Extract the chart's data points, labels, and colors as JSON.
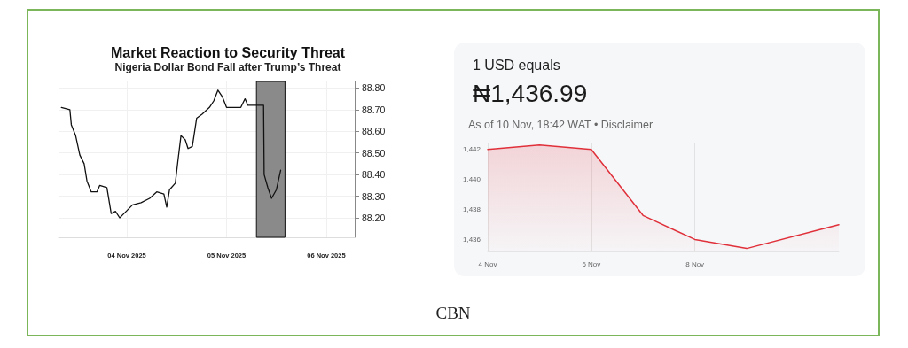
{
  "chart_data": [
    {
      "type": "line",
      "title": "Market Reaction to Security Threat",
      "subtitle": "Nigeria Dollar Bond Fall after Trump’s Threat",
      "annotations": [
        "CBN"
      ],
      "x": [
        "2025-11-03T08:14",
        "2025-11-03T10:17",
        "2025-11-03T10:38",
        "2025-11-03T11:40",
        "2025-11-03T12:41",
        "2025-11-03T13:43",
        "2025-11-03T14:24",
        "2025-11-03T15:26",
        "2025-11-03T16:48",
        "2025-11-03T17:29",
        "2025-11-03T19:12",
        "2025-11-03T20:14",
        "2025-11-03T21:16",
        "2025-11-03T22:17",
        "2025-11-03T23:19",
        "2025-11-04T01:22",
        "2025-11-04T03:26",
        "2025-11-04T05:29",
        "2025-11-04T07:12",
        "2025-11-04T08:55",
        "2025-11-04T09:36",
        "2025-11-04T10:17",
        "2025-11-04T11:40",
        "2025-11-04T12:20",
        "2025-11-04T13:02",
        "2025-11-04T14:04",
        "2025-11-04T14:44",
        "2025-11-04T15:46",
        "2025-11-04T16:48",
        "2025-11-04T18:10",
        "2025-11-04T19:53",
        "2025-11-04T20:55",
        "2025-11-04T21:56",
        "2025-11-04T22:58",
        "2025-11-05T00:00",
        "2025-11-05T01:43",
        "2025-11-05T03:26",
        "2025-11-05T04:27",
        "2025-11-05T05:08",
        "2025-11-05T07:32",
        "2025-11-05T08:55",
        "2025-11-05T09:03",
        "2025-11-05T09:56",
        "2025-11-05T10:50",
        "2025-11-05T12:00",
        "2025-11-05T13:02"
      ],
      "series": [
        {
          "color": "#111111",
          "values": [
            88.71,
            88.7,
            88.63,
            88.58,
            88.49,
            88.45,
            88.37,
            88.32,
            88.32,
            88.35,
            88.34,
            88.22,
            88.23,
            88.2,
            88.22,
            88.26,
            88.27,
            88.29,
            88.32,
            88.31,
            88.25,
            88.33,
            88.36,
            88.47,
            88.58,
            88.56,
            88.52,
            88.53,
            88.66,
            88.68,
            88.71,
            88.74,
            88.79,
            88.76,
            88.71,
            88.71,
            88.71,
            88.75,
            88.72,
            88.72,
            88.72,
            88.4,
            88.34,
            88.29,
            88.33,
            88.42
          ]
        }
      ],
      "xlim": [
        "2025-11-03T07:33",
        "2025-11-06T06:51"
      ],
      "xticks": [
        {
          "value": "2025-11-04",
          "label": "04 Nov 2025"
        },
        {
          "value": "2025-11-05",
          "label": "05 Nov 2025"
        },
        {
          "value": "2025-11-06",
          "label": "06 Nov 2025"
        }
      ],
      "ylim": [
        88.11,
        88.83
      ],
      "yticks": [
        {
          "value": 88.2,
          "label": "88.20"
        },
        {
          "value": 88.3,
          "label": "88.30"
        },
        {
          "value": 88.4,
          "label": "88.40"
        },
        {
          "value": 88.5,
          "label": "88.50"
        },
        {
          "value": 88.6,
          "label": "88.60"
        },
        {
          "value": 88.7,
          "label": "88.70"
        },
        {
          "value": 88.8,
          "label": "88.80"
        }
      ],
      "bands": [
        {
          "axis": "x",
          "from": "2025-11-05T07:12",
          "to": "2025-11-05T14:04",
          "color": "#8a8a8a"
        }
      ],
      "grid": true,
      "marker": "none",
      "line_style": "solid"
    },
    {
      "type": "area",
      "title": "1 USD equals",
      "subtitle": "₦1,436.99",
      "annotations": [
        "As of 10 Nov, 18:42 WAT • Disclaimer"
      ],
      "x": [
        "--11-04",
        "--11-05",
        "--11-06",
        "--11-07",
        "--11-08",
        "--11-09",
        "--11-10T18:42"
      ],
      "series": [
        {
          "color": "#e0313b",
          "values": [
            1442.0,
            1442.3,
            1442.0,
            1437.6,
            1436.0,
            1435.4,
            1436.99
          ]
        }
      ],
      "xlim": [
        "--11-04",
        "--11-10T18:42"
      ],
      "xticks": [
        {
          "value": "--11-04",
          "label": "4 Nov"
        },
        {
          "value": "--11-06",
          "label": "6 Nov"
        },
        {
          "value": "--11-08",
          "label": "8 Nov"
        }
      ],
      "ylim": [
        1435.2,
        1442.4
      ],
      "yticks": [
        {
          "value": 1436,
          "label": "1,436"
        },
        {
          "value": 1438,
          "label": "1,438"
        },
        {
          "value": 1440,
          "label": "1,440"
        },
        {
          "value": 1442,
          "label": "1,442"
        }
      ],
      "grid": "x",
      "marker": "none",
      "line_style": "solid"
    }
  ]
}
